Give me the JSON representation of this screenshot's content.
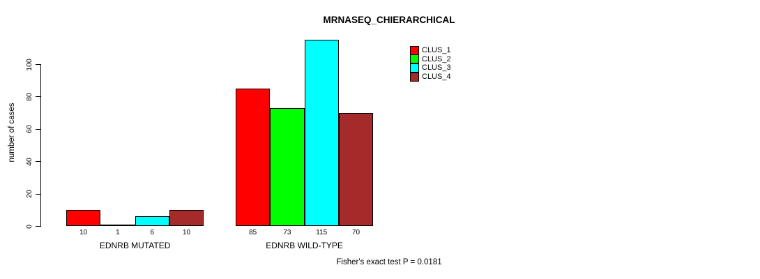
{
  "title": "MRNASEQ_CHIERARCHICAL",
  "footnote": "Fisher's exact test P = 0.0181",
  "colors": {
    "clus_1": "#FF0000",
    "clus_2": "#00FF00",
    "clus_3": "#00FFFF",
    "clus_4": "#A52A2A",
    "axis": "#000000",
    "background": "#FFFFFF"
  },
  "chart_data": {
    "type": "bar",
    "title": "MRNASEQ_CHIERARCHICAL",
    "xlabel": "",
    "ylabel": "number of cases",
    "ylim": [
      0,
      100
    ],
    "yticks": [
      0,
      20,
      40,
      60,
      80,
      100
    ],
    "grid": false,
    "legend_position": "top-right",
    "categories": [
      "EDNRB MUTATED",
      "EDNRB WILD-TYPE"
    ],
    "series": [
      {
        "name": "CLUS_1",
        "color": "#FF0000",
        "values": [
          10,
          85
        ]
      },
      {
        "name": "CLUS_2",
        "color": "#00FF00",
        "values": [
          1,
          73
        ]
      },
      {
        "name": "CLUS_3",
        "color": "#00FFFF",
        "values": [
          6,
          115
        ]
      },
      {
        "name": "CLUS_4",
        "color": "#A52A2A",
        "values": [
          10,
          70
        ]
      }
    ],
    "bar_value_labels": [
      [
        "10",
        "1",
        "6",
        "10"
      ],
      [
        "85",
        "73",
        "115",
        "70"
      ]
    ],
    "annotation": "Fisher's exact test P = 0.0181"
  }
}
